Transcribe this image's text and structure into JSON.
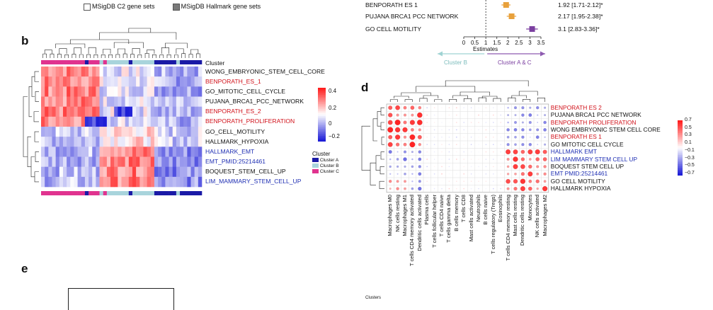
{
  "top_legend": {
    "c2_label": "MSigDB C2 gene sets",
    "hallmark_label": "MSigDB Hallmark gene sets",
    "c2_color": "#ffffff",
    "hallmark_color": "#7a7a7a"
  },
  "forest": {
    "rows": [
      {
        "label": "BENPORATH ES 1",
        "estimate": 1.92,
        "lo": 1.71,
        "hi": 2.12,
        "text": "1.92 [1.71-2.12]*",
        "color": "#e8a13c"
      },
      {
        "label": "PUJANA BRCA1 PCC NETWORK",
        "estimate": 2.17,
        "lo": 1.95,
        "hi": 2.38,
        "text": "2.17 [1.95-2.38]*",
        "color": "#e8a13c"
      },
      {
        "label": "GO CELL MOTILITY",
        "estimate": 3.1,
        "lo": 2.83,
        "hi": 3.36,
        "text": "3.1 [2.83-3.36]*",
        "color": "#7b3fa0"
      }
    ],
    "ticks": [
      "0",
      "0.5",
      "1",
      "1.5",
      "2",
      "2.5",
      "3",
      "3.5"
    ],
    "xlabel": "Estimates",
    "arrow_left": "Cluster B",
    "arrow_right": "Cluster A & C",
    "left_color": "#9fd3d3",
    "right_color": "#8e5bb0"
  },
  "panel_b": {
    "letter": "b",
    "cluster_header": "Cluster",
    "rows": [
      {
        "label": "WONG_EMBRYONIC_STEM_CELL_CORE",
        "color": "black"
      },
      {
        "label": "BENPORATH_ES_1",
        "color": "red"
      },
      {
        "label": "GO_MITOTIC_CELL_CYCLE",
        "color": "black"
      },
      {
        "label": "PUJANA_BRCA1_PCC_NETWORK",
        "color": "black"
      },
      {
        "label": "BENPORATH_ES_2",
        "color": "red"
      },
      {
        "label": "BENPORATH_PROLIFERATION",
        "color": "red"
      },
      {
        "label": "GO_CELL_MOTILITY",
        "color": "black"
      },
      {
        "label": "HALLMARK_HYPOXIA",
        "color": "black"
      },
      {
        "label": "HALLMARK_EMT",
        "color": "blue"
      },
      {
        "label": "EMT_PMID:25214461",
        "color": "blue"
      },
      {
        "label": "BOQUEST_STEM_CELL_UP",
        "color": "black"
      },
      {
        "label": "LIM_MAMMARY_STEM_CELL_UP",
        "color": "blue"
      }
    ],
    "scale_ticks": [
      "0.4",
      "0.2",
      "0",
      "−0.2"
    ],
    "cluster_legend_title": "Cluster",
    "cluster_legend": [
      {
        "label": "Cluster A",
        "color": "#1a1aa6"
      },
      {
        "label": "Cluster B",
        "color": "#a8d4dc"
      },
      {
        "label": "Cluster C",
        "color": "#e0338f"
      }
    ]
  },
  "panel_d": {
    "letter": "d",
    "rows": [
      {
        "label": "BENPORATH ES 2",
        "color": "red"
      },
      {
        "label": "PUJANA BRCA1 PCC NETWORK",
        "color": "black"
      },
      {
        "label": "BENPORATH PROLIFERATION",
        "color": "red"
      },
      {
        "label": "WONG EMBRYONIC STEM CELL CORE",
        "color": "black"
      },
      {
        "label": "BENPORATH ES 1",
        "color": "red"
      },
      {
        "label": "GO MITOTIC CELL CYCLE",
        "color": "black"
      },
      {
        "label": "HALLMARK EMT",
        "color": "blue"
      },
      {
        "label": "LIM MAMMARY STEM CELL UP",
        "color": "blue"
      },
      {
        "label": "BOQUEST STEM CELL UP",
        "color": "black"
      },
      {
        "label": "EMT PMID:25214461",
        "color": "blue"
      },
      {
        "label": "GO CELL MOTILITY",
        "color": "black"
      },
      {
        "label": "HALLMARK HYPOXIA",
        "color": "black"
      }
    ],
    "columns": [
      "Macrophages M0",
      "NK cells resting",
      "Macrophages M1",
      "T cells CD4 memory activated",
      "Dendritic cells activated",
      "Plasma cells",
      "T cells follicular helper",
      "T cells CD4 naive",
      "T cells gamma delta",
      "B cells memory",
      "T cells CD8",
      "Mast cells activated",
      "Neutrophils",
      "B cells naive",
      "T cells regulatory (Tregs)",
      "Eosinophils",
      "T cells CD4 memory resting",
      "Mast cells resting",
      "Dendritic cells resting",
      "Monocytes",
      "NK cells activated",
      "Macrophages M2"
    ],
    "scale_ticks": [
      "0.7",
      "0.5",
      "0.3",
      "0.1",
      "−0.1",
      "−0.3",
      "−0.5",
      "−0.7"
    ]
  },
  "panel_e": {
    "letter": "e",
    "footer_label": "Clusters"
  }
}
